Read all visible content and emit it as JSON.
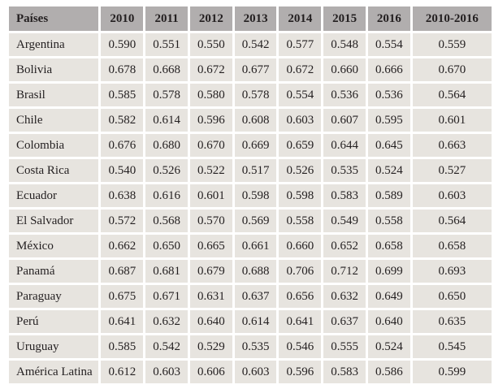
{
  "table": {
    "header": [
      "Países",
      "2010",
      "2011",
      "2012",
      "2013",
      "2014",
      "2015",
      "2016",
      "2010-2016"
    ],
    "rows": [
      {
        "country": "Argentina",
        "values": [
          "0.590",
          "0.551",
          "0.550",
          "0.542",
          "0.577",
          "0.548",
          "0.554",
          "0.559"
        ]
      },
      {
        "country": "Bolivia",
        "values": [
          "0.678",
          "0.668",
          "0.672",
          "0.677",
          "0.672",
          "0.660",
          "0.666",
          "0.670"
        ]
      },
      {
        "country": "Brasil",
        "values": [
          "0.585",
          "0.578",
          "0.580",
          "0.578",
          "0.554",
          "0.536",
          "0.536",
          "0.564"
        ]
      },
      {
        "country": "Chile",
        "values": [
          "0.582",
          "0.614",
          "0.596",
          "0.608",
          "0.603",
          "0.607",
          "0.595",
          "0.601"
        ]
      },
      {
        "country": "Colombia",
        "values": [
          "0.676",
          "0.680",
          "0.670",
          "0.669",
          "0.659",
          "0.644",
          "0.645",
          "0.663"
        ]
      },
      {
        "country": "Costa Rica",
        "values": [
          "0.540",
          "0.526",
          "0.522",
          "0.517",
          "0.526",
          "0.535",
          "0.524",
          "0.527"
        ]
      },
      {
        "country": "Ecuador",
        "values": [
          "0.638",
          "0.616",
          "0.601",
          "0.598",
          "0.598",
          "0.583",
          "0.589",
          "0.603"
        ]
      },
      {
        "country": "El Salvador",
        "values": [
          "0.572",
          "0.568",
          "0.570",
          "0.569",
          "0.558",
          "0.549",
          "0.558",
          "0.564"
        ]
      },
      {
        "country": "México",
        "values": [
          "0.662",
          "0.650",
          "0.665",
          "0.661",
          "0.660",
          "0.652",
          "0.658",
          "0.658"
        ]
      },
      {
        "country": "Panamá",
        "values": [
          "0.687",
          "0.681",
          "0.679",
          "0.688",
          "0.706",
          "0.712",
          "0.699",
          "0.693"
        ]
      },
      {
        "country": "Paraguay",
        "values": [
          "0.675",
          "0.671",
          "0.631",
          "0.637",
          "0.656",
          "0.632",
          "0.649",
          "0.650"
        ]
      },
      {
        "country": "Perú",
        "values": [
          "0.641",
          "0.632",
          "0.640",
          "0.614",
          "0.641",
          "0.637",
          "0.640",
          "0.635"
        ]
      },
      {
        "country": "Uruguay",
        "values": [
          "0.585",
          "0.542",
          "0.529",
          "0.535",
          "0.546",
          "0.555",
          "0.524",
          "0.545"
        ]
      },
      {
        "country": "América Latina",
        "values": [
          "0.612",
          "0.603",
          "0.606",
          "0.603",
          "0.596",
          "0.583",
          "0.586",
          "0.599"
        ]
      }
    ]
  },
  "colors": {
    "header_bg": "#b1aeae",
    "cell_bg": "#e7e4df",
    "text": "#231f20",
    "gap": "#ffffff"
  },
  "chart_data": {
    "type": "table",
    "title": "",
    "columns": [
      "Países",
      "2010",
      "2011",
      "2012",
      "2013",
      "2014",
      "2015",
      "2016",
      "2010-2016"
    ],
    "rows": [
      [
        "Argentina",
        0.59,
        0.551,
        0.55,
        0.542,
        0.577,
        0.548,
        0.554,
        0.559
      ],
      [
        "Bolivia",
        0.678,
        0.668,
        0.672,
        0.677,
        0.672,
        0.66,
        0.666,
        0.67
      ],
      [
        "Brasil",
        0.585,
        0.578,
        0.58,
        0.578,
        0.554,
        0.536,
        0.536,
        0.564
      ],
      [
        "Chile",
        0.582,
        0.614,
        0.596,
        0.608,
        0.603,
        0.607,
        0.595,
        0.601
      ],
      [
        "Colombia",
        0.676,
        0.68,
        0.67,
        0.669,
        0.659,
        0.644,
        0.645,
        0.663
      ],
      [
        "Costa Rica",
        0.54,
        0.526,
        0.522,
        0.517,
        0.526,
        0.535,
        0.524,
        0.527
      ],
      [
        "Ecuador",
        0.638,
        0.616,
        0.601,
        0.598,
        0.598,
        0.583,
        0.589,
        0.603
      ],
      [
        "El Salvador",
        0.572,
        0.568,
        0.57,
        0.569,
        0.558,
        0.549,
        0.558,
        0.564
      ],
      [
        "México",
        0.662,
        0.65,
        0.665,
        0.661,
        0.66,
        0.652,
        0.658,
        0.658
      ],
      [
        "Panamá",
        0.687,
        0.681,
        0.679,
        0.688,
        0.706,
        0.712,
        0.699,
        0.693
      ],
      [
        "Paraguay",
        0.675,
        0.671,
        0.631,
        0.637,
        0.656,
        0.632,
        0.649,
        0.65
      ],
      [
        "Perú",
        0.641,
        0.632,
        0.64,
        0.614,
        0.641,
        0.637,
        0.64,
        0.635
      ],
      [
        "Uruguay",
        0.585,
        0.542,
        0.529,
        0.535,
        0.546,
        0.555,
        0.524,
        0.545
      ],
      [
        "América Latina",
        0.612,
        0.603,
        0.606,
        0.603,
        0.596,
        0.583,
        0.586,
        0.599
      ]
    ]
  }
}
